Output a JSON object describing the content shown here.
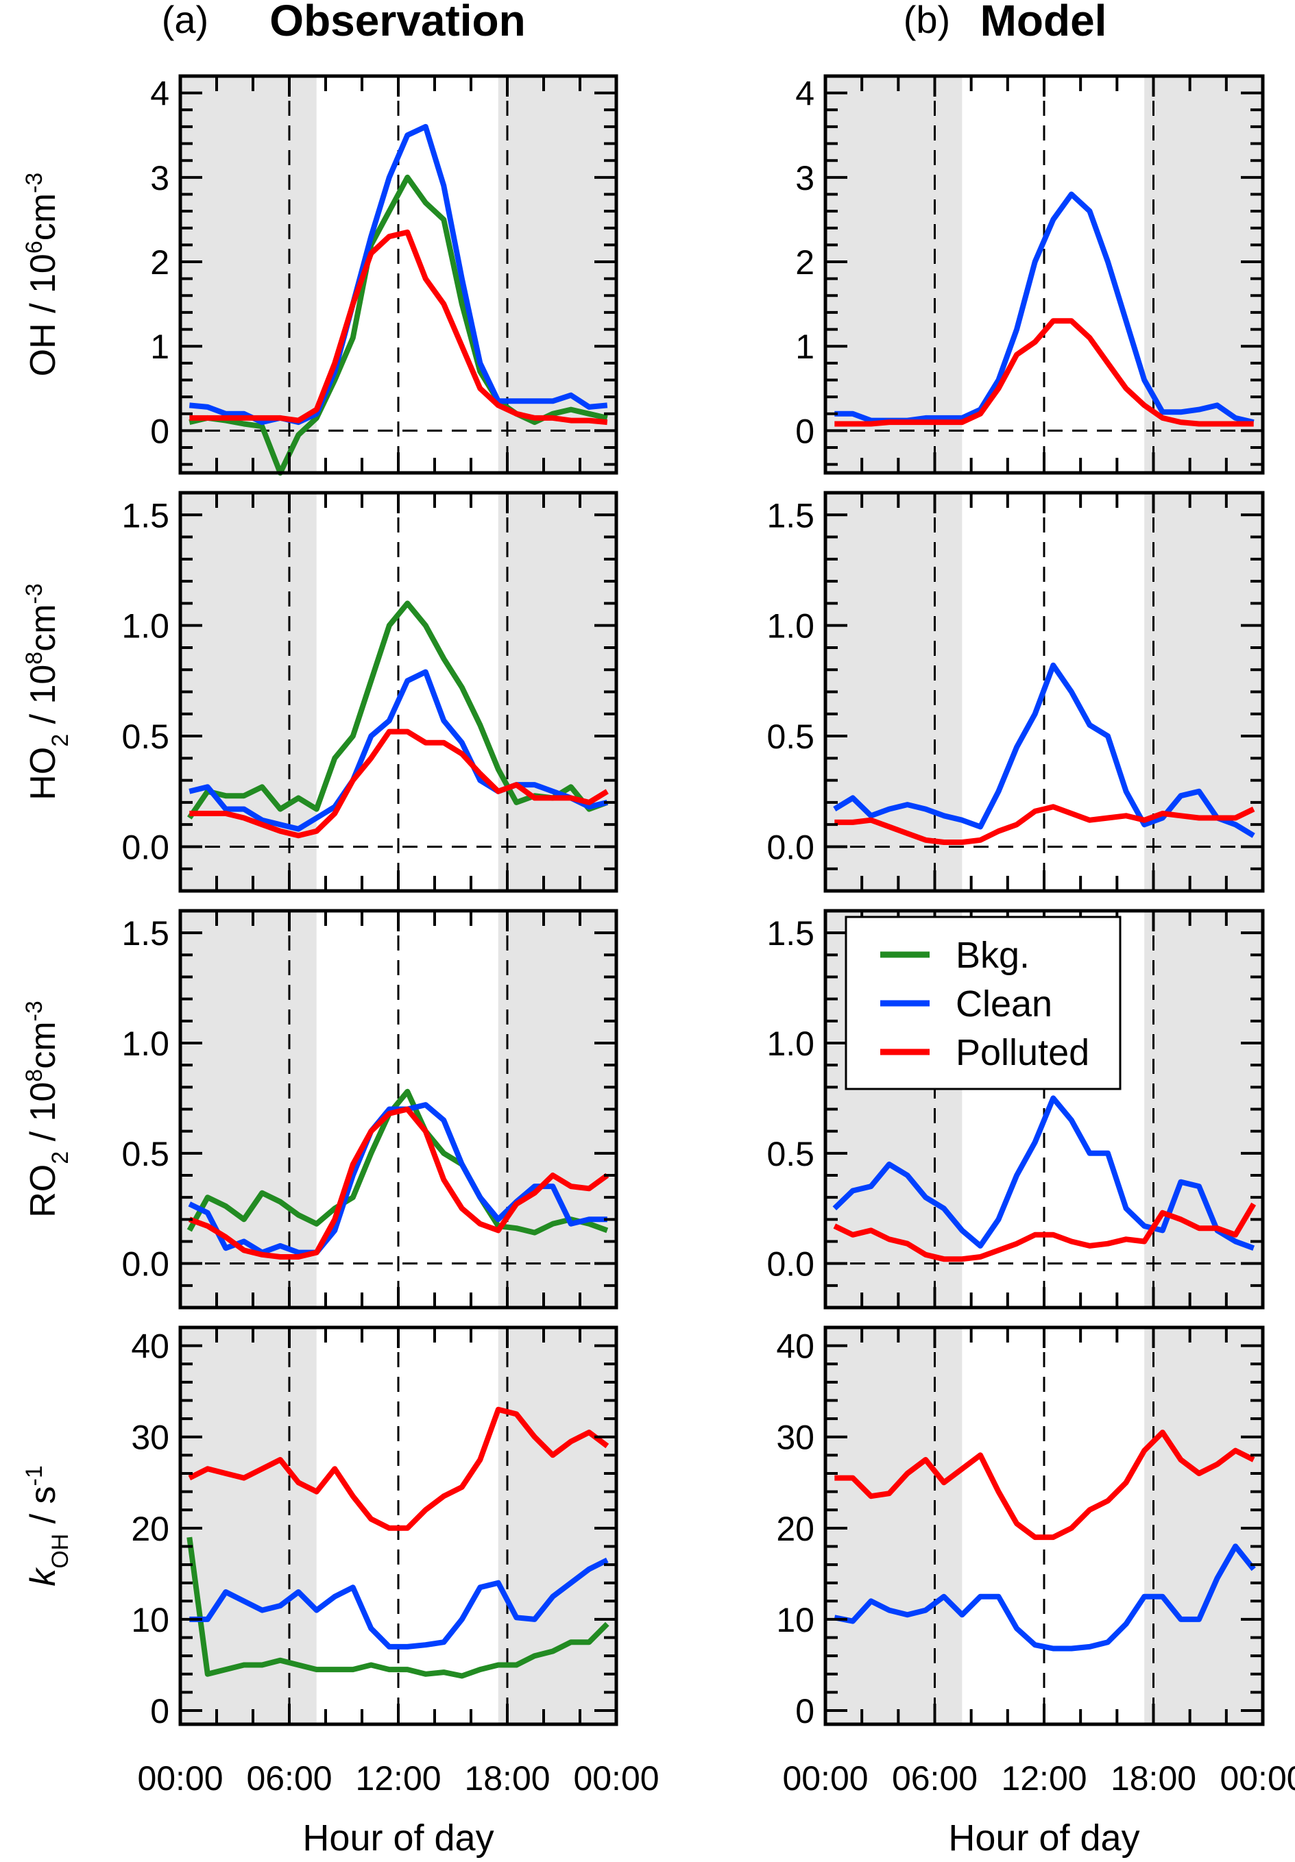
{
  "titles": {
    "left_tag": "(a)",
    "left": "Observation",
    "right_tag": "(b)",
    "right": "Model"
  },
  "colors": {
    "Bkg.": "#228B22",
    "Clean": "#0040FF",
    "Polluted": "#FF0000",
    "night_shade": "#E5E5E5"
  },
  "chart_data": {
    "type": "line",
    "x": [
      0.5,
      1.5,
      2.5,
      3.5,
      4.5,
      5.5,
      6.5,
      7.5,
      8.5,
      9.5,
      10.5,
      11.5,
      12.5,
      13.5,
      14.5,
      15.5,
      16.5,
      17.5,
      18.5,
      19.5,
      20.5,
      21.5,
      22.5,
      23.5
    ],
    "xlim": [
      0,
      24
    ],
    "xticks": [
      0,
      6,
      12,
      18,
      24
    ],
    "xtick_labels": [
      "00:00",
      "06:00",
      "12:00",
      "18:00",
      "00:00"
    ],
    "xlabel": "Hour of day",
    "vertical_dashed_lines": [
      6,
      12,
      18
    ],
    "night_shading": [
      [
        0,
        7.5
      ],
      [
        17.5,
        24
      ]
    ],
    "legend": {
      "location": "top-left of panel (b) RO2",
      "entries": [
        "Bkg.",
        "Clean",
        "Polluted"
      ]
    },
    "panels": [
      {
        "column": "Observation",
        "row": "OH",
        "ylim": [
          -0.5,
          4.2
        ],
        "yticks": [
          0,
          1,
          2,
          3,
          4
        ],
        "ytick_labels": [
          "0",
          "1",
          "2",
          "3",
          "4"
        ],
        "zero_line": true,
        "ylabel": [
          {
            "t": "OH / 10",
            "s": "n"
          },
          {
            "t": "6",
            "s": "sup"
          },
          {
            "t": "cm",
            "s": "n"
          },
          {
            "t": "-3",
            "s": "sup"
          }
        ],
        "series": [
          {
            "name": "Bkg.",
            "values": [
              0.1,
              0.15,
              0.12,
              0.08,
              0.05,
              -0.5,
              -0.05,
              0.15,
              0.6,
              1.1,
              2.2,
              2.6,
              3.0,
              2.7,
              2.5,
              1.5,
              0.7,
              0.35,
              0.2,
              0.1,
              0.2,
              0.25,
              0.2,
              0.15
            ]
          },
          {
            "name": "Clean",
            "values": [
              0.3,
              0.28,
              0.2,
              0.2,
              0.1,
              0.15,
              0.1,
              0.2,
              0.7,
              1.5,
              2.3,
              3.0,
              3.5,
              3.6,
              2.9,
              1.8,
              0.8,
              0.35,
              0.35,
              0.35,
              0.35,
              0.42,
              0.28,
              0.3
            ]
          },
          {
            "name": "Polluted",
            "values": [
              0.15,
              0.15,
              0.15,
              0.15,
              0.15,
              0.15,
              0.12,
              0.25,
              0.8,
              1.5,
              2.1,
              2.3,
              2.35,
              1.8,
              1.5,
              1.0,
              0.5,
              0.3,
              0.2,
              0.15,
              0.15,
              0.12,
              0.12,
              0.1
            ]
          }
        ]
      },
      {
        "column": "Model",
        "row": "OH",
        "ylim": [
          -0.5,
          4.2
        ],
        "yticks": [
          0,
          1,
          2,
          3,
          4
        ],
        "ytick_labels": [
          "0",
          "1",
          "2",
          "3",
          "4"
        ],
        "zero_line": true,
        "series": [
          {
            "name": "Clean",
            "values": [
              0.2,
              0.2,
              0.12,
              0.12,
              0.12,
              0.15,
              0.15,
              0.15,
              0.25,
              0.6,
              1.2,
              2.0,
              2.5,
              2.8,
              2.6,
              2.0,
              1.3,
              0.6,
              0.22,
              0.22,
              0.25,
              0.3,
              0.15,
              0.1
            ]
          },
          {
            "name": "Polluted",
            "values": [
              0.08,
              0.08,
              0.08,
              0.1,
              0.1,
              0.1,
              0.1,
              0.1,
              0.2,
              0.5,
              0.9,
              1.05,
              1.3,
              1.3,
              1.1,
              0.8,
              0.5,
              0.3,
              0.15,
              0.1,
              0.08,
              0.08,
              0.08,
              0.08
            ]
          }
        ]
      },
      {
        "column": "Observation",
        "row": "HO2",
        "ylim": [
          -0.2,
          1.6
        ],
        "yticks": [
          0,
          0.5,
          1.0,
          1.5
        ],
        "ytick_labels": [
          "0.0",
          "0.5",
          "1.0",
          "1.5"
        ],
        "zero_line": true,
        "ylabel": [
          {
            "t": "HO",
            "s": "n"
          },
          {
            "t": "2",
            "s": "sub"
          },
          {
            "t": " / 10",
            "s": "n"
          },
          {
            "t": "8",
            "s": "sup"
          },
          {
            "t": "cm",
            "s": "n"
          },
          {
            "t": "-3",
            "s": "sup"
          }
        ],
        "series": [
          {
            "name": "Bkg.",
            "values": [
              0.13,
              0.25,
              0.23,
              0.23,
              0.27,
              0.17,
              0.22,
              0.17,
              0.4,
              0.5,
              0.75,
              1.0,
              1.1,
              1.0,
              0.85,
              0.72,
              0.55,
              0.35,
              0.2,
              0.23,
              0.22,
              0.27,
              0.17,
              0.2
            ]
          },
          {
            "name": "Clean",
            "values": [
              0.25,
              0.27,
              0.17,
              0.17,
              0.12,
              0.1,
              0.08,
              0.13,
              0.18,
              0.3,
              0.5,
              0.57,
              0.75,
              0.79,
              0.57,
              0.47,
              0.3,
              0.25,
              0.28,
              0.28,
              0.25,
              0.22,
              0.18,
              0.2
            ]
          },
          {
            "name": "Polluted",
            "values": [
              0.15,
              0.15,
              0.15,
              0.13,
              0.1,
              0.07,
              0.05,
              0.07,
              0.15,
              0.3,
              0.4,
              0.52,
              0.52,
              0.47,
              0.47,
              0.42,
              0.33,
              0.25,
              0.28,
              0.22,
              0.22,
              0.22,
              0.2,
              0.25
            ]
          }
        ]
      },
      {
        "column": "Model",
        "row": "HO2",
        "ylim": [
          -0.2,
          1.6
        ],
        "yticks": [
          0,
          0.5,
          1.0,
          1.5
        ],
        "ytick_labels": [
          "0.0",
          "0.5",
          "1.0",
          "1.5"
        ],
        "zero_line": true,
        "series": [
          {
            "name": "Clean",
            "values": [
              0.17,
              0.22,
              0.14,
              0.17,
              0.19,
              0.17,
              0.14,
              0.12,
              0.09,
              0.25,
              0.45,
              0.6,
              0.82,
              0.7,
              0.55,
              0.5,
              0.25,
              0.1,
              0.13,
              0.23,
              0.25,
              0.13,
              0.1,
              0.05
            ]
          },
          {
            "name": "Polluted",
            "values": [
              0.11,
              0.11,
              0.12,
              0.09,
              0.06,
              0.03,
              0.02,
              0.02,
              0.03,
              0.07,
              0.1,
              0.16,
              0.18,
              0.15,
              0.12,
              0.13,
              0.14,
              0.12,
              0.15,
              0.14,
              0.13,
              0.13,
              0.13,
              0.17
            ]
          }
        ]
      },
      {
        "column": "Observation",
        "row": "RO2",
        "ylim": [
          -0.2,
          1.6
        ],
        "yticks": [
          0,
          0.5,
          1.0,
          1.5
        ],
        "ytick_labels": [
          "0.0",
          "0.5",
          "1.0",
          "1.5"
        ],
        "zero_line": true,
        "ylabel": [
          {
            "t": "RO",
            "s": "n"
          },
          {
            "t": "2",
            "s": "sub"
          },
          {
            "t": " / 10",
            "s": "n"
          },
          {
            "t": "8",
            "s": "sup"
          },
          {
            "t": "cm",
            "s": "n"
          },
          {
            "t": "-3",
            "s": "sup"
          }
        ],
        "series": [
          {
            "name": "Bkg.",
            "values": [
              0.15,
              0.3,
              0.26,
              0.2,
              0.32,
              0.28,
              0.22,
              0.18,
              0.25,
              0.3,
              0.5,
              0.68,
              0.78,
              0.6,
              0.5,
              0.45,
              0.3,
              0.17,
              0.16,
              0.14,
              0.18,
              0.2,
              0.18,
              0.15
            ]
          },
          {
            "name": "Clean",
            "values": [
              0.27,
              0.23,
              0.07,
              0.1,
              0.05,
              0.08,
              0.05,
              0.05,
              0.15,
              0.4,
              0.6,
              0.7,
              0.7,
              0.72,
              0.65,
              0.45,
              0.3,
              0.2,
              0.28,
              0.35,
              0.35,
              0.18,
              0.2,
              0.2
            ]
          },
          {
            "name": "Polluted",
            "values": [
              0.2,
              0.17,
              0.12,
              0.06,
              0.04,
              0.03,
              0.03,
              0.05,
              0.2,
              0.45,
              0.6,
              0.68,
              0.7,
              0.6,
              0.38,
              0.25,
              0.18,
              0.15,
              0.27,
              0.32,
              0.4,
              0.35,
              0.34,
              0.4
            ]
          }
        ]
      },
      {
        "column": "Model",
        "row": "RO2",
        "ylim": [
          -0.2,
          1.6
        ],
        "yticks": [
          0,
          0.5,
          1.0,
          1.5
        ],
        "ytick_labels": [
          "0.0",
          "0.5",
          "1.0",
          "1.5"
        ],
        "zero_line": true,
        "has_legend": true,
        "series": [
          {
            "name": "Clean",
            "values": [
              0.25,
              0.33,
              0.35,
              0.45,
              0.4,
              0.3,
              0.25,
              0.15,
              0.08,
              0.2,
              0.4,
              0.55,
              0.75,
              0.65,
              0.5,
              0.5,
              0.25,
              0.17,
              0.15,
              0.37,
              0.35,
              0.15,
              0.1,
              0.07
            ]
          },
          {
            "name": "Polluted",
            "values": [
              0.17,
              0.13,
              0.15,
              0.11,
              0.09,
              0.04,
              0.02,
              0.02,
              0.03,
              0.06,
              0.09,
              0.13,
              0.13,
              0.1,
              0.08,
              0.09,
              0.11,
              0.1,
              0.23,
              0.2,
              0.16,
              0.16,
              0.13,
              0.27
            ]
          }
        ]
      },
      {
        "column": "Observation",
        "row": "kOH",
        "ylim": [
          -1.5,
          42
        ],
        "yticks": [
          0,
          10,
          20,
          30,
          40
        ],
        "ytick_labels": [
          "0",
          "10",
          "20",
          "30",
          "40"
        ],
        "zero_line": false,
        "ylabel": [
          {
            "t": "k",
            "s": "i"
          },
          {
            "t": "OH",
            "s": "sub"
          },
          {
            "t": " / s",
            "s": "n"
          },
          {
            "t": "-1",
            "s": "sup"
          }
        ],
        "series": [
          {
            "name": "Bkg.",
            "values": [
              19,
              4,
              4.5,
              5,
              5,
              5.5,
              5,
              4.5,
              4.5,
              4.5,
              5,
              4.5,
              4.5,
              4,
              4.2,
              3.8,
              4.5,
              5,
              5,
              6,
              6.5,
              7.5,
              7.5,
              9.5
            ]
          },
          {
            "name": "Clean",
            "values": [
              10,
              10,
              13,
              12,
              11,
              11.5,
              13,
              11,
              12.5,
              13.5,
              9,
              7,
              7,
              7.2,
              7.5,
              10,
              13.5,
              14,
              10.2,
              10,
              12.5,
              14,
              15.5,
              16.5
            ]
          },
          {
            "name": "Polluted",
            "values": [
              25.5,
              26.5,
              26,
              25.5,
              26.5,
              27.5,
              25,
              24,
              26.5,
              23.5,
              21,
              20,
              20,
              22,
              23.5,
              24.5,
              27.5,
              33,
              32.5,
              30,
              28,
              29.5,
              30.5,
              29
            ]
          }
        ]
      },
      {
        "column": "Model",
        "row": "kOH",
        "ylim": [
          -1.5,
          42
        ],
        "yticks": [
          0,
          10,
          20,
          30,
          40
        ],
        "ytick_labels": [
          "0",
          "10",
          "20",
          "30",
          "40"
        ],
        "zero_line": false,
        "series": [
          {
            "name": "Clean",
            "values": [
              10.2,
              9.8,
              12,
              11,
              10.5,
              11,
              12.5,
              10.5,
              12.5,
              12.5,
              9,
              7.2,
              6.8,
              6.8,
              7,
              7.5,
              9.5,
              12.5,
              12.5,
              10,
              10,
              14.5,
              18,
              15.5
            ]
          },
          {
            "name": "Polluted",
            "values": [
              25.5,
              25.5,
              23.5,
              23.8,
              26,
              27.5,
              25,
              26.5,
              28,
              24,
              20.5,
              19,
              19,
              20,
              22,
              23,
              25,
              28.5,
              30.5,
              27.5,
              26,
              27,
              28.5,
              27.5
            ]
          }
        ]
      }
    ]
  }
}
